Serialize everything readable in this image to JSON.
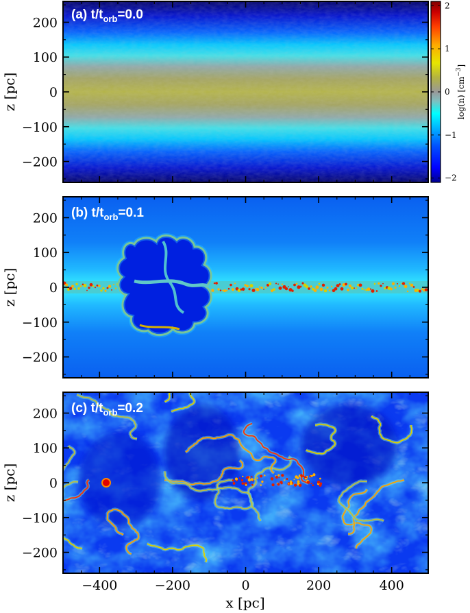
{
  "chart_data": [
    {
      "type": "heatmap",
      "panel_label_main": "(a) t/t",
      "panel_label_sub": "orb",
      "panel_label_tail": "=0.0",
      "time_orb": 0.0,
      "xlim": [
        -500,
        500
      ],
      "ylim": [
        -260,
        260
      ],
      "xticks": [
        -400,
        -200,
        0,
        200,
        400
      ],
      "yticks": [
        -200,
        -100,
        0,
        100,
        200
      ],
      "ytick_labels": [
        "−200",
        "−100",
        "0",
        "100",
        "200"
      ],
      "ylabel": "z [pc]",
      "xlabel": "",
      "show_xtick_labels": false,
      "state": "initial-stratified-disk"
    },
    {
      "type": "heatmap",
      "panel_label_main": "(b) t/t",
      "panel_label_sub": "orb",
      "panel_label_tail": "=0.1",
      "time_orb": 0.1,
      "xlim": [
        -500,
        500
      ],
      "ylim": [
        -260,
        260
      ],
      "xticks": [
        -400,
        -200,
        0,
        200,
        400
      ],
      "yticks": [
        -200,
        -100,
        0,
        100,
        200
      ],
      "ytick_labels": [
        "−200",
        "−100",
        "0",
        "100",
        "200"
      ],
      "ylabel": "z [pc]",
      "xlabel": "",
      "show_xtick_labels": false,
      "state": "thin-disk-with-superbubble"
    },
    {
      "type": "heatmap",
      "panel_label_main": "(c) t/t",
      "panel_label_sub": "orb",
      "panel_label_tail": "=0.2",
      "time_orb": 0.2,
      "xlim": [
        -500,
        500
      ],
      "ylim": [
        -260,
        260
      ],
      "xticks": [
        -400,
        -200,
        0,
        200,
        400
      ],
      "xtick_labels": [
        "−400",
        "−200",
        "0",
        "200",
        "400"
      ],
      "yticks": [
        -200,
        -100,
        0,
        100,
        200
      ],
      "ytick_labels": [
        "−200",
        "−100",
        "0",
        "100",
        "200"
      ],
      "ylabel": "z [pc]",
      "xlabel": "x [pc]",
      "show_xtick_labels": true,
      "state": "turbulent-multiphase"
    }
  ],
  "colorbar": {
    "label_main": "log(n) [cm",
    "label_sup": "−3",
    "label_tail": "]",
    "range": [
      -2.1,
      2.1
    ],
    "ticks": [
      -2,
      -1,
      0,
      1,
      2
    ],
    "tick_labels": [
      "−2",
      "−1",
      "0",
      "1",
      "2"
    ],
    "colors": [
      "#00008f",
      "#0000ff",
      "#0050ff",
      "#00b4ff",
      "#00ffff",
      "#7fbfbf",
      "#999999",
      "#b3b340",
      "#e6e600",
      "#ffaa00",
      "#ff4000",
      "#cc0000",
      "#800000"
    ]
  }
}
